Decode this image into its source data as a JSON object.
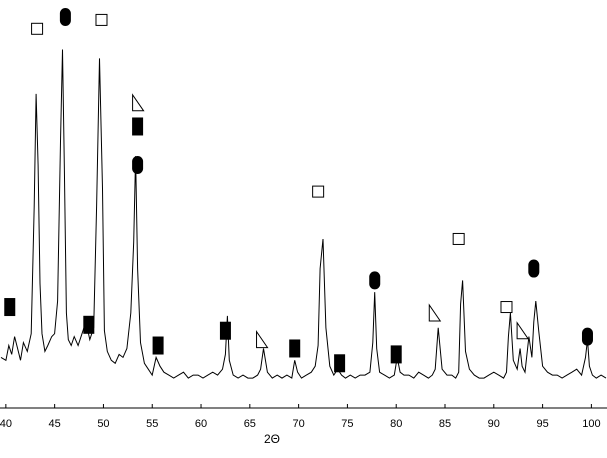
{
  "chart_data": {
    "type": "line",
    "title": "",
    "xlabel": "2Θ",
    "ylabel": "",
    "xlim": [
      39.4,
      101.6
    ],
    "ylim": [
      0,
      100
    ],
    "x_ticks": [
      40,
      45,
      50,
      55,
      60,
      65,
      70,
      75,
      80,
      85,
      90,
      95,
      100
    ],
    "x_tick_labels": [
      "40",
      "45",
      "50",
      "55",
      "60",
      "65",
      "70",
      "75",
      "80",
      "85",
      "90",
      "95",
      "100"
    ],
    "grid": false,
    "legend": "none",
    "series": [
      {
        "color": "#000000",
        "x": [
          39.5,
          40.0,
          40.3,
          40.6,
          40.9,
          41.2,
          41.5,
          41.8,
          42.2,
          42.6,
          42.9,
          43.1,
          43.3,
          43.5,
          43.7,
          44.0,
          44.3,
          44.7,
          45.0,
          45.3,
          45.6,
          45.8,
          46.0,
          46.2,
          46.4,
          46.7,
          47.0,
          47.4,
          47.8,
          48.2,
          48.6,
          49.0,
          49.3,
          49.6,
          49.9,
          50.1,
          50.4,
          50.8,
          51.2,
          51.6,
          52.0,
          52.4,
          52.8,
          53.1,
          53.3,
          53.5,
          53.8,
          54.2,
          54.6,
          55.0,
          55.4,
          55.8,
          56.2,
          56.7,
          57.2,
          57.7,
          58.2,
          58.7,
          59.2,
          59.7,
          60.2,
          60.7,
          61.2,
          61.7,
          62.2,
          62.5,
          62.7,
          62.9,
          63.3,
          63.8,
          64.3,
          64.8,
          65.3,
          65.8,
          66.1,
          66.4,
          66.8,
          67.3,
          67.8,
          68.3,
          68.8,
          69.3,
          69.6,
          69.9,
          70.3,
          70.8,
          71.3,
          71.7,
          72.0,
          72.2,
          72.5,
          72.8,
          73.2,
          73.6,
          74.0,
          74.4,
          74.8,
          75.3,
          75.8,
          76.3,
          76.8,
          77.3,
          77.6,
          77.8,
          78.0,
          78.3,
          78.8,
          79.3,
          79.8,
          80.1,
          80.4,
          80.8,
          81.3,
          81.8,
          82.3,
          82.8,
          83.3,
          83.7,
          84.0,
          84.3,
          84.7,
          85.2,
          85.7,
          86.1,
          86.4,
          86.6,
          86.8,
          87.1,
          87.5,
          88.0,
          88.5,
          89.0,
          89.5,
          90.0,
          90.5,
          91.0,
          91.3,
          91.5,
          91.7,
          92.0,
          92.4,
          92.7,
          92.9,
          93.2,
          93.6,
          93.9,
          94.1,
          94.3,
          94.6,
          95.0,
          95.5,
          96.0,
          96.5,
          97.0,
          97.5,
          98.0,
          98.5,
          99.0,
          99.4,
          99.6,
          99.8,
          100.1,
          100.5,
          101.0,
          101.5
        ],
        "y": [
          9,
          8,
          13,
          10,
          16,
          12,
          8,
          14,
          11,
          17,
          60,
          98,
          74,
          34,
          17,
          11,
          13,
          16,
          17,
          28,
          82,
          113,
          72,
          24,
          15,
          13,
          16,
          13,
          17,
          21,
          15,
          19,
          60,
          110,
          66,
          18,
          11,
          8,
          7,
          10,
          9,
          12,
          24,
          48,
          77,
          39,
          14,
          7,
          5,
          3,
          9,
          6,
          4,
          3,
          2,
          3,
          4,
          2,
          3,
          3,
          2,
          3,
          4,
          3,
          5,
          10,
          23,
          8,
          3,
          2,
          3,
          2,
          2,
          3,
          5,
          12,
          4,
          2,
          3,
          2,
          3,
          2,
          8,
          4,
          2,
          3,
          4,
          6,
          13,
          39,
          49,
          19,
          6,
          3,
          5,
          3,
          2,
          3,
          2,
          3,
          3,
          4,
          14,
          31,
          12,
          4,
          3,
          2,
          3,
          9,
          4,
          3,
          3,
          2,
          4,
          3,
          2,
          3,
          5,
          19,
          5,
          3,
          3,
          2,
          4,
          27,
          35,
          11,
          5,
          3,
          2,
          2,
          3,
          4,
          3,
          2,
          4,
          16,
          24,
          8,
          5,
          12,
          6,
          4,
          16,
          9,
          21,
          28,
          18,
          6,
          4,
          3,
          3,
          2,
          3,
          4,
          5,
          3,
          9,
          15,
          6,
          3,
          2,
          3,
          2
        ]
      }
    ],
    "annotations": [
      {
        "symbol": "open-square",
        "x": 43.2,
        "y": 120
      },
      {
        "symbol": "filled-oval",
        "x": 46.1,
        "y": 124
      },
      {
        "symbol": "open-square",
        "x": 49.8,
        "y": 123
      },
      {
        "symbol": "open-triangle",
        "x": 53.5,
        "y": 95
      },
      {
        "symbol": "filled-rect",
        "x": 53.5,
        "y": 87
      },
      {
        "symbol": "filled-oval",
        "x": 53.5,
        "y": 74
      },
      {
        "symbol": "filled-rect",
        "x": 40.4,
        "y": 26
      },
      {
        "symbol": "filled-rect",
        "x": 48.5,
        "y": 20
      },
      {
        "symbol": "filled-rect",
        "x": 55.6,
        "y": 13
      },
      {
        "symbol": "filled-rect",
        "x": 62.5,
        "y": 18
      },
      {
        "symbol": "open-triangle",
        "x": 66.2,
        "y": 15
      },
      {
        "symbol": "filled-rect",
        "x": 69.6,
        "y": 12
      },
      {
        "symbol": "open-square",
        "x": 72.0,
        "y": 65
      },
      {
        "symbol": "filled-rect",
        "x": 74.2,
        "y": 7
      },
      {
        "symbol": "filled-oval",
        "x": 77.8,
        "y": 35
      },
      {
        "symbol": "filled-rect",
        "x": 80.0,
        "y": 10
      },
      {
        "symbol": "open-triangle",
        "x": 83.9,
        "y": 24
      },
      {
        "symbol": "open-square",
        "x": 86.4,
        "y": 49
      },
      {
        "symbol": "open-square",
        "x": 91.3,
        "y": 26
      },
      {
        "symbol": "open-triangle",
        "x": 92.9,
        "y": 18
      },
      {
        "symbol": "filled-oval",
        "x": 94.1,
        "y": 39
      },
      {
        "symbol": "filled-oval",
        "x": 99.6,
        "y": 16
      }
    ]
  }
}
